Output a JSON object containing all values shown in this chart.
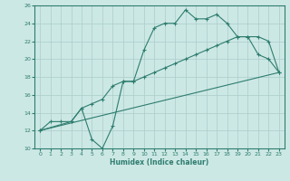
{
  "xlabel": "Humidex (Indice chaleur)",
  "ylabel": "",
  "bg_color": "#cce8e5",
  "grid_color": "#aaccca",
  "line_color": "#2e7d6e",
  "xlim": [
    -0.5,
    23.5
  ],
  "ylim": [
    10,
    26
  ],
  "xticks": [
    0,
    1,
    2,
    3,
    4,
    5,
    6,
    7,
    8,
    9,
    10,
    11,
    12,
    13,
    14,
    15,
    16,
    17,
    18,
    19,
    20,
    21,
    22,
    23
  ],
  "yticks": [
    10,
    12,
    14,
    16,
    18,
    20,
    22,
    24,
    26
  ],
  "line1_x": [
    0,
    1,
    2,
    3,
    4,
    5,
    6,
    7,
    8,
    9,
    10,
    11,
    12,
    13,
    14,
    15,
    16,
    17,
    18,
    19,
    20,
    21,
    22,
    23
  ],
  "line1_y": [
    12,
    13,
    13,
    13,
    14.5,
    11,
    10,
    12.5,
    17.5,
    17.5,
    21,
    23.5,
    24,
    24,
    25.5,
    24.5,
    24.5,
    25,
    24,
    22.5,
    22.5,
    20.5,
    20,
    18.5
  ],
  "line2_x": [
    0,
    23
  ],
  "line2_y": [
    12,
    18.5
  ],
  "line3_x": [
    0,
    3,
    4,
    5,
    6,
    7,
    8,
    9,
    10,
    11,
    12,
    13,
    14,
    15,
    16,
    17,
    18,
    19,
    20,
    21,
    22,
    23
  ],
  "line3_y": [
    12,
    13,
    14.5,
    15,
    15.5,
    17,
    17.5,
    17.5,
    18,
    18.5,
    19,
    19.5,
    20,
    20.5,
    21,
    21.5,
    22,
    22.5,
    22.5,
    22.5,
    22,
    18.5
  ]
}
